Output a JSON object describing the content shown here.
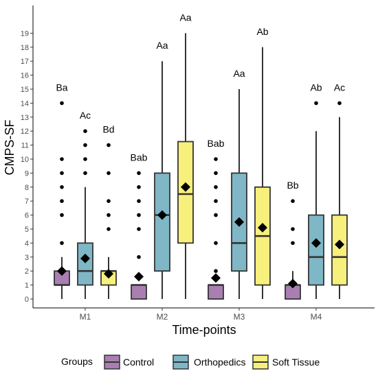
{
  "chart_data": {
    "type": "box",
    "title": "",
    "xlabel": "Time-points",
    "ylabel": "CMPS-SF",
    "categories": [
      "M1",
      "M2",
      "M3",
      "M4"
    ],
    "y_ticks": [
      0,
      1,
      2,
      3,
      4,
      5,
      6,
      7,
      8,
      9,
      10,
      11,
      12,
      13,
      14,
      15,
      16,
      17,
      18,
      19
    ],
    "ylim": [
      -0.5,
      20.5
    ],
    "grid": false,
    "legend": {
      "title": "Groups",
      "placement": "bottom"
    },
    "series": [
      {
        "name": "Control",
        "color": "#a97fb2",
        "boxes": [
          {
            "category": "M1",
            "q1": 1,
            "median": 1,
            "q3": 2,
            "whisker_low": 0,
            "whisker_high": 3,
            "mean": 2.0,
            "outliers": [
              4,
              6,
              7,
              8,
              9,
              10,
              14
            ],
            "label": "Ba"
          },
          {
            "category": "M2",
            "q1": 0,
            "median": 1,
            "q3": 1,
            "whisker_low": 0,
            "whisker_high": 1,
            "mean": 1.6,
            "outliers": [
              3,
              5,
              6,
              7,
              8,
              9
            ],
            "label": "Bab"
          },
          {
            "category": "M3",
            "q1": 0,
            "median": 1,
            "q3": 1,
            "whisker_low": 0,
            "whisker_high": 1,
            "mean": 1.5,
            "outliers": [
              2,
              4,
              6,
              7,
              8,
              9,
              10
            ],
            "label": "Bab"
          },
          {
            "category": "M4",
            "q1": 0,
            "median": 1,
            "q3": 1,
            "whisker_low": 0,
            "whisker_high": 2,
            "mean": 1.1,
            "outliers": [
              4,
              5,
              7
            ],
            "label": "Bb"
          }
        ]
      },
      {
        "name": "Orthopedics",
        "color": "#7fb7c6",
        "boxes": [
          {
            "category": "M1",
            "q1": 1,
            "median": 2,
            "q3": 4,
            "whisker_low": 0,
            "whisker_high": 8,
            "mean": 2.9,
            "outliers": [
              9,
              10,
              11,
              12
            ],
            "label": "Ac"
          },
          {
            "category": "M2",
            "q1": 2,
            "median": 6,
            "q3": 9,
            "whisker_low": 0,
            "whisker_high": 17,
            "mean": 6.0,
            "outliers": [],
            "label": "Aa"
          },
          {
            "category": "M3",
            "q1": 2,
            "median": 4,
            "q3": 9,
            "whisker_low": 0,
            "whisker_high": 15,
            "mean": 5.5,
            "outliers": [],
            "label": "Aa"
          },
          {
            "category": "M4",
            "q1": 1,
            "median": 3,
            "q3": 6,
            "whisker_low": 0,
            "whisker_high": 12,
            "mean": 4.0,
            "outliers": [
              14
            ],
            "label": "Ab"
          }
        ]
      },
      {
        "name": "Soft Tissue",
        "color": "#f8f07d",
        "boxes": [
          {
            "category": "M1",
            "q1": 1,
            "median": 2,
            "q3": 2,
            "whisker_low": 0,
            "whisker_high": 3,
            "mean": 1.8,
            "outliers": [
              5,
              6,
              7,
              9,
              11
            ],
            "label": "Bd"
          },
          {
            "category": "M2",
            "q1": 4,
            "median": 7.5,
            "q3": 11.25,
            "whisker_low": 0,
            "whisker_high": 19,
            "mean": 8.0,
            "outliers": [],
            "label": "Aa"
          },
          {
            "category": "M3",
            "q1": 1,
            "median": 4.5,
            "q3": 8,
            "whisker_low": 0,
            "whisker_high": 18,
            "mean": 5.1,
            "outliers": [],
            "label": "Ab"
          },
          {
            "category": "M4",
            "q1": 1,
            "median": 3,
            "q3": 6,
            "whisker_low": 0,
            "whisker_high": 13,
            "mean": 3.9,
            "outliers": [
              14
            ],
            "label": "Ac"
          }
        ]
      }
    ]
  }
}
